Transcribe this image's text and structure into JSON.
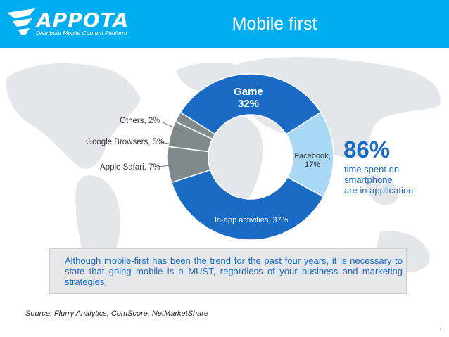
{
  "header": {
    "logo_text": "APPOTA",
    "logo_tagline": "Distribute Mobile Content Platform",
    "title": "Mobile first",
    "colors": {
      "header_bg": "#00aeef"
    }
  },
  "chart_data": {
    "type": "pie",
    "style": "donut",
    "title": "",
    "slices": [
      {
        "label": "Game",
        "value": 32,
        "display": "32%",
        "color": "#1a6bc4"
      },
      {
        "label": "Facebook,",
        "value": 17,
        "display": "17%",
        "color": "#a8d8f4"
      },
      {
        "label": "In-app activities, 37%",
        "value": 37,
        "display": "",
        "color": "#1a6bc4"
      },
      {
        "label": "Apple Safari, 7%",
        "value": 7,
        "display": "",
        "color": "#808a8c"
      },
      {
        "label": "Google Browsers, 5%",
        "value": 5,
        "display": "",
        "color": "#808a8c"
      },
      {
        "label": "Others, 2%",
        "value": 2,
        "display": "",
        "color": "#808a8c"
      }
    ]
  },
  "highlight": {
    "value": "86%",
    "line1": "time spent on",
    "line2": "smartphone",
    "line3": "are in application"
  },
  "note": {
    "text": "Although mobile-first has been the trend for the past four years, it is necessary to state that going mobile is a MUST, regardless of your business and marketing strategies."
  },
  "source": "Source: Flurry Analytics, ComScore, NetMarketShare",
  "page_number": "7"
}
